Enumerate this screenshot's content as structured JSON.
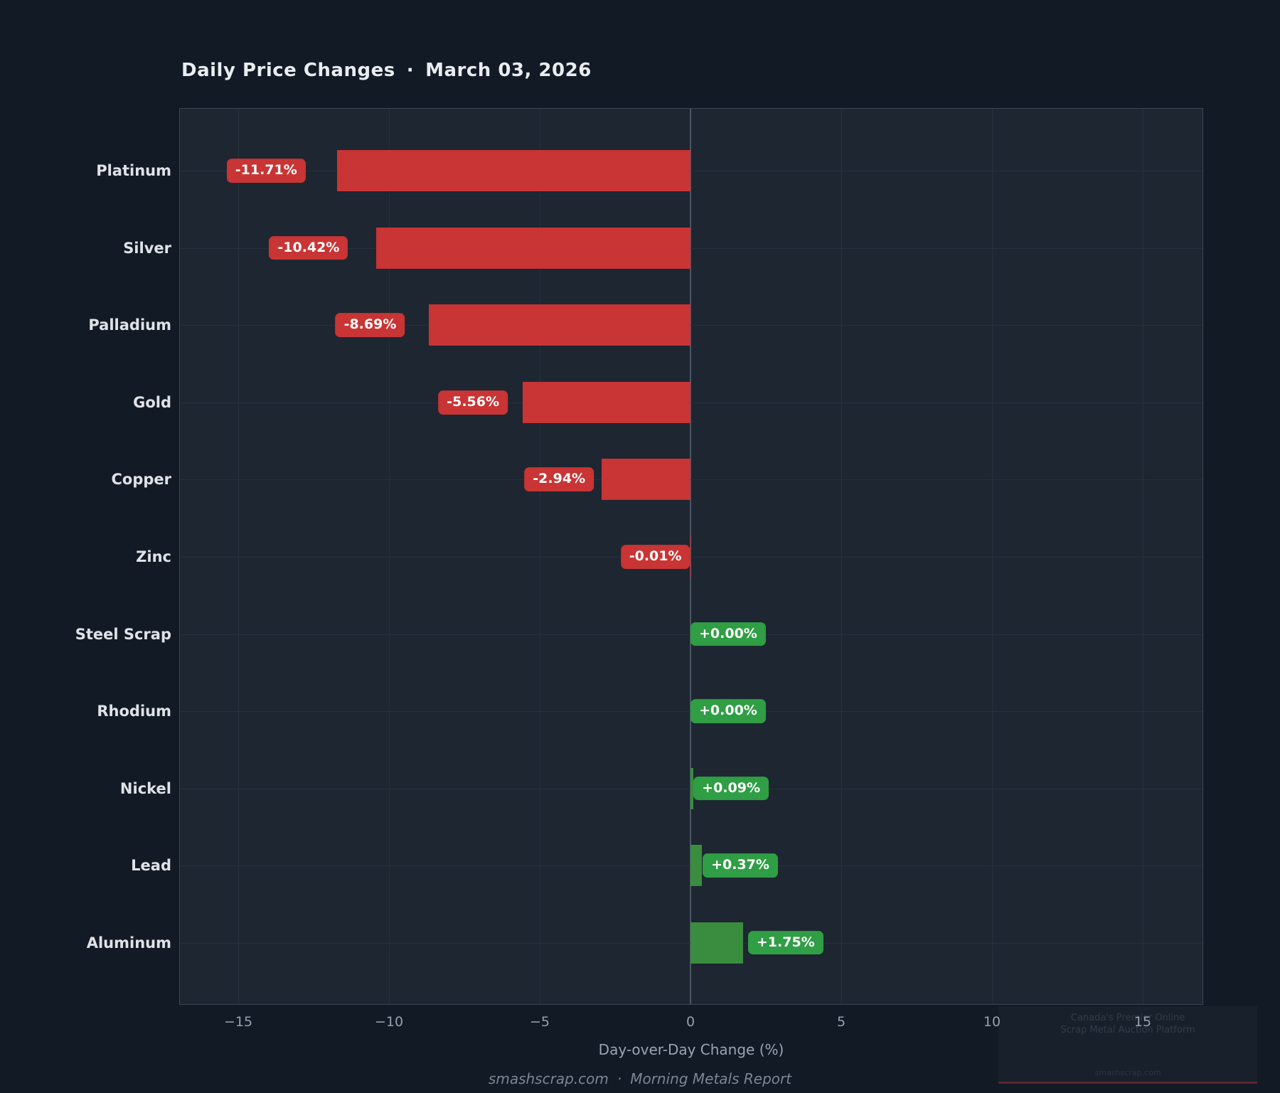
{
  "title": {
    "text": "Daily Price Changes",
    "separator": "·",
    "date": "March 03, 2026"
  },
  "chart_data": {
    "type": "bar",
    "orientation": "horizontal",
    "title": "Daily Price Changes · March 03, 2026",
    "categories": [
      "Platinum",
      "Silver",
      "Palladium",
      "Gold",
      "Copper",
      "Zinc",
      "Steel Scrap",
      "Rhodium",
      "Nickel",
      "Lead",
      "Aluminum"
    ],
    "values": [
      -11.71,
      -10.42,
      -8.69,
      -5.56,
      -2.94,
      -0.01,
      0.0,
      0.0,
      0.09,
      0.37,
      1.75
    ],
    "value_labels": [
      "-11.71%",
      "-10.42%",
      "-8.69%",
      "-5.56%",
      "-2.94%",
      "-0.01%",
      "+0.00%",
      "+0.00%",
      "+0.09%",
      "+0.37%",
      "+1.75%"
    ],
    "xlabel": "Day-over-Day Change (%)",
    "xlim": [
      -17,
      17
    ],
    "xticks": [
      -15,
      -10,
      -5,
      0,
      5,
      10,
      15
    ],
    "xtick_labels": [
      "−15",
      "−10",
      "−5",
      "0",
      "5",
      "10",
      "15"
    ],
    "grid": true,
    "legend": false,
    "colors": {
      "negative_bar": "#c93434",
      "negative_badge": "#c93434",
      "positive_bar": "#3a8c3e",
      "positive_badge": "#2f9e44",
      "plot_background": "#1d2631",
      "page_background": "#121a25",
      "zero_line": "#4b5663",
      "gridline": "#26313e"
    }
  },
  "footer": {
    "source": "smashscrap.com",
    "separator": "·",
    "report": "Morning Metals Report"
  },
  "watermark": {
    "line1": "Canada's Premier Online",
    "line2": "Scrap Metal Auction Platform",
    "line3": "smashscrap.com"
  }
}
